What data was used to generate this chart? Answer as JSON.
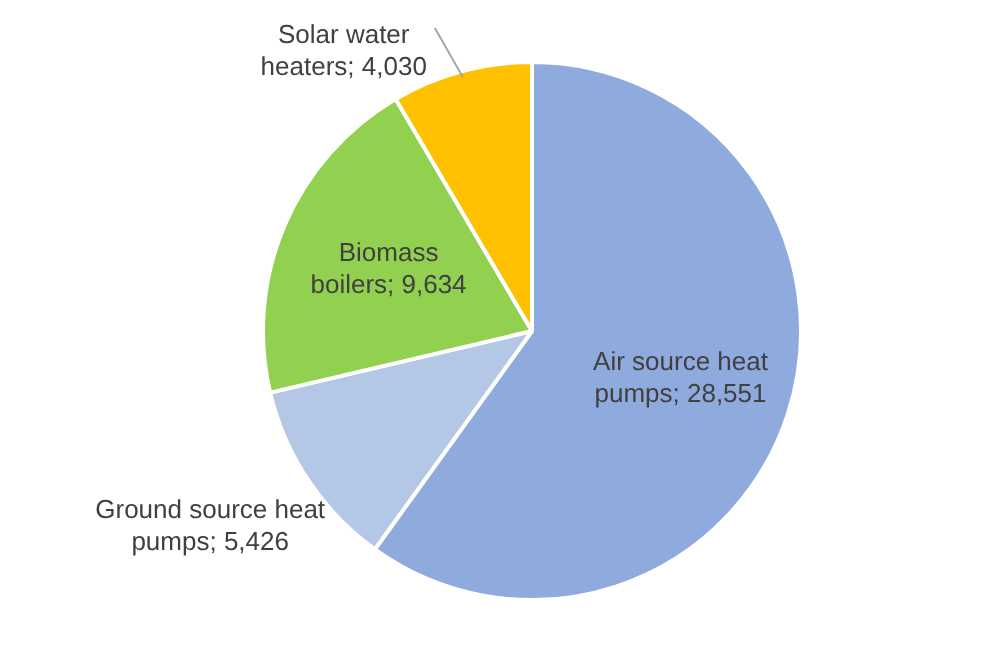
{
  "chart_data": {
    "type": "pie",
    "categories": [
      "Air source heat pumps",
      "Ground source heat pumps",
      "Biomass boilers",
      "Solar water heaters"
    ],
    "values": [
      28551,
      5426,
      9634,
      4030
    ],
    "colors": [
      "#8faadc",
      "#b4c7e7",
      "#92d050",
      "#ffc000"
    ],
    "value_labels": [
      "28,551",
      "5,426",
      "9,634",
      "4,030"
    ],
    "legend": false
  }
}
